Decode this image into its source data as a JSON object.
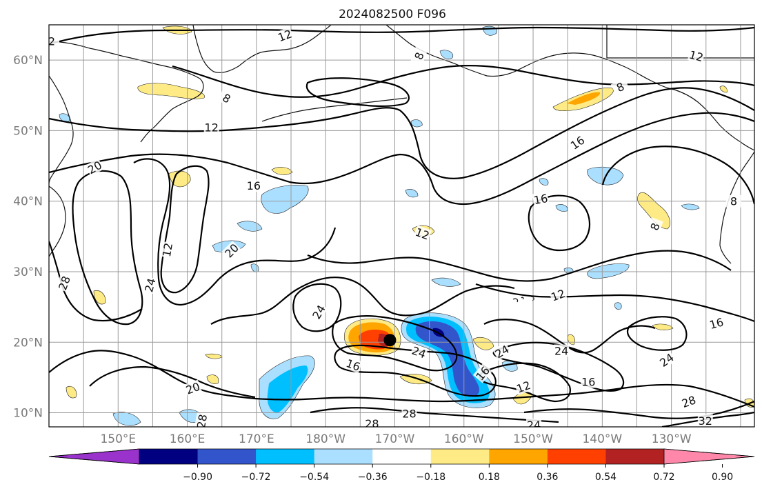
{
  "title": "2024082500 F096",
  "map": {
    "lat_labels": [
      {
        "text": "60°N",
        "lat": 60
      },
      {
        "text": "50°N",
        "lat": 50
      },
      {
        "text": "40°N",
        "lat": 40
      },
      {
        "text": "30°N",
        "lat": 30
      },
      {
        "text": "20°N",
        "lat": 20
      },
      {
        "text": "10°N",
        "lat": 10
      }
    ],
    "lon_labels": [
      {
        "text": "150°E",
        "lon": 150
      },
      {
        "text": "160°E",
        "lon": 160
      },
      {
        "text": "170°E",
        "lon": 170
      },
      {
        "text": "180°W",
        "lon": 180
      },
      {
        "text": "170°W",
        "lon": 190
      },
      {
        "text": "160°W",
        "lon": 200
      },
      {
        "text": "150°W",
        "lon": 210
      },
      {
        "text": "140°W",
        "lon": 220
      },
      {
        "text": "130°W",
        "lon": 230
      }
    ],
    "lon_range": [
      140,
      242
    ],
    "lat_range": [
      8,
      65
    ],
    "gridlines": true,
    "storm_marker": {
      "lon": 189.3,
      "lat": 20.3
    }
  },
  "colorbar": {
    "colors": [
      "#9933cc",
      "#000080",
      "#3355cc",
      "#00bfff",
      "#aadfff",
      "#ffffff",
      "#ffeb85",
      "#ffa500",
      "#ff4000",
      "#b22222",
      "#ff88aa"
    ],
    "tick_labels": [
      "−0.90",
      "−0.72",
      "−0.54",
      "−0.36",
      "−0.18",
      "0.18",
      "0.36",
      "0.54",
      "0.72",
      "0.90"
    ]
  },
  "contour_labels": [
    {
      "text": "12",
      "lon": 174.1,
      "lat": 63.5,
      "angle": -20
    },
    {
      "text": "2",
      "lon": 140.4,
      "lat": 62.7,
      "angle": 0
    },
    {
      "text": "8",
      "lon": 193.5,
      "lat": 60.6,
      "angle": -70
    },
    {
      "text": "12",
      "lon": 233.6,
      "lat": 60.6,
      "angle": 15
    },
    {
      "text": "8",
      "lon": 165.7,
      "lat": 54.6,
      "angle": 30
    },
    {
      "text": "8",
      "lon": 222.6,
      "lat": 56.2,
      "angle": -25
    },
    {
      "text": "12",
      "lon": 163.5,
      "lat": 50.5,
      "angle": 0
    },
    {
      "text": "16",
      "lon": 216.4,
      "lat": 48.3,
      "angle": -35
    },
    {
      "text": "20",
      "lon": 146.6,
      "lat": 44.8,
      "angle": -30
    },
    {
      "text": "16",
      "lon": 169.6,
      "lat": 42.2,
      "angle": 0
    },
    {
      "text": "16",
      "lon": 211.1,
      "lat": 40.3,
      "angle": -10
    },
    {
      "text": "8",
      "lon": 227.6,
      "lat": 36.4,
      "angle": -70
    },
    {
      "text": "8",
      "lon": 239.0,
      "lat": 40.0,
      "angle": 0
    },
    {
      "text": "12",
      "lon": 194.0,
      "lat": 35.4,
      "angle": 20
    },
    {
      "text": "12",
      "lon": 157.1,
      "lat": 33.1,
      "angle": -80
    },
    {
      "text": "20",
      "lon": 166.4,
      "lat": 33.0,
      "angle": -45
    },
    {
      "text": "28",
      "lon": 142.2,
      "lat": 28.4,
      "angle": -70
    },
    {
      "text": "24",
      "lon": 154.6,
      "lat": 28.1,
      "angle": -75
    },
    {
      "text": "12",
      "lon": 213.6,
      "lat": 26.7,
      "angle": -20
    },
    {
      "text": "16",
      "lon": 236.5,
      "lat": 22.7,
      "angle": -15
    },
    {
      "text": "24",
      "lon": 179.0,
      "lat": 24.3,
      "angle": -60
    },
    {
      "text": "24",
      "lon": 193.5,
      "lat": 18.6,
      "angle": 20
    },
    {
      "text": "24",
      "lon": 205.5,
      "lat": 18.7,
      "angle": -30
    },
    {
      "text": "24",
      "lon": 214.1,
      "lat": 18.8,
      "angle": 0
    },
    {
      "text": "24",
      "lon": 229.3,
      "lat": 17.5,
      "angle": -35
    },
    {
      "text": "16",
      "lon": 184.0,
      "lat": 16.8,
      "angle": 20
    },
    {
      "text": "16",
      "lon": 202.7,
      "lat": 15.6,
      "angle": -50
    },
    {
      "text": "12",
      "lon": 208.6,
      "lat": 13.7,
      "angle": -20
    },
    {
      "text": "16",
      "lon": 218.0,
      "lat": 14.4,
      "angle": 0
    },
    {
      "text": "20",
      "lon": 160.8,
      "lat": 13.5,
      "angle": -20
    },
    {
      "text": "28",
      "lon": 192.1,
      "lat": 9.9,
      "angle": 0
    },
    {
      "text": "28",
      "lon": 232.5,
      "lat": 11.6,
      "angle": -20
    },
    {
      "text": "28",
      "lon": 186.7,
      "lat": 8.5,
      "angle": 0
    },
    {
      "text": "28",
      "lon": 162.1,
      "lat": 8.8,
      "angle": -80
    },
    {
      "text": "24",
      "lon": 210.1,
      "lat": 8.3,
      "angle": 0
    },
    {
      "text": "32",
      "lon": 234.9,
      "lat": 8.9,
      "angle": 0
    }
  ]
}
